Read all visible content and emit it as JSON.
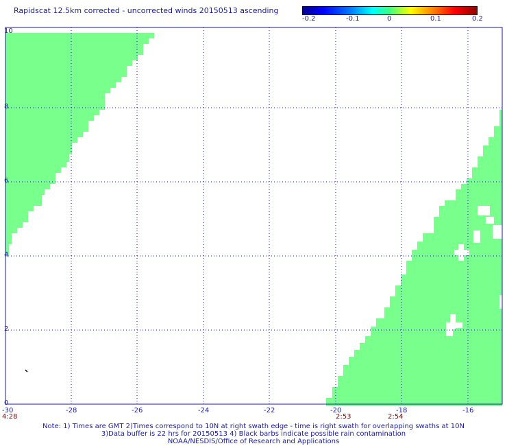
{
  "title": "Rapidscat 12.5km corrected - uncorrected winds 20150513 ascending",
  "colorbar": {
    "ticks": [
      "-0.2",
      "-0.1",
      "0",
      "0.1",
      "0.2"
    ],
    "colors": [
      "#000090",
      "#0000ff",
      "#00ffff",
      "#40ff80",
      "#ffff00",
      "#ff8000",
      "#ff0000",
      "#900000"
    ]
  },
  "x_axis": {
    "ticks": [
      "-30",
      "-28",
      "-26",
      "-24",
      "-22",
      "-20",
      "-18",
      "-16"
    ]
  },
  "y_axis": {
    "ticks": [
      "0",
      "2",
      "4",
      "6",
      "8",
      "10"
    ]
  },
  "times": [
    "4:28",
    "2:53",
    "2:54"
  ],
  "swath_color": "#78ff8c",
  "notes": [
    "Note: 1) Times are GMT 2)Times correspond to 10N at right swath edge - time is right swath for overlapping swaths at 10N",
    "3)Data buffer is 22 hrs for 20150513 4) Black barbs indicate possible rain contamination",
    "NOAA/NESDIS/Office of Research and Applications"
  ]
}
